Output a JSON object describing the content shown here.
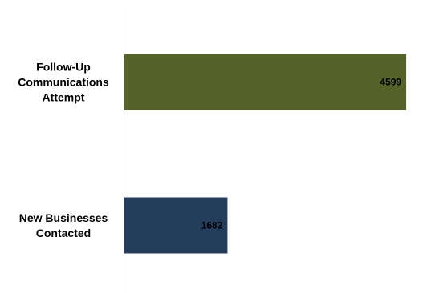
{
  "chart_data": {
    "type": "bar",
    "orientation": "horizontal",
    "title": "",
    "xlabel": "",
    "ylabel": "",
    "categories": [
      [
        "Follow-Up",
        "Communications",
        "Attempt"
      ],
      [
        "New Businesses",
        "Contacted"
      ]
    ],
    "values": [
      4599,
      1682
    ],
    "value_labels": [
      "4599",
      "1682"
    ],
    "colors": [
      "#556228",
      "#253d5d"
    ],
    "xlim": [
      0,
      4650
    ],
    "grid": false,
    "legend": "none"
  }
}
